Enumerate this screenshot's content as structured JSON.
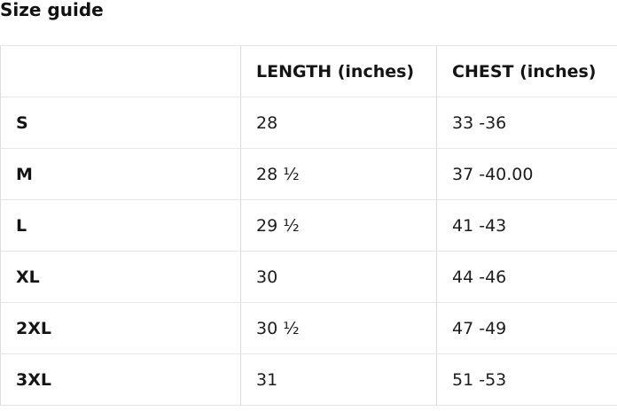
{
  "title": "Size guide",
  "table": {
    "columns": [
      "",
      "LENGTH (inches)",
      "CHEST (inches)"
    ],
    "rows": [
      {
        "size": "S",
        "length": "28",
        "chest": "33 -36"
      },
      {
        "size": "M",
        "length": "28 ½",
        "chest": "37 -40.00"
      },
      {
        "size": "L",
        "length": "29 ½",
        "chest": "41 -43"
      },
      {
        "size": "XL",
        "length": "30",
        "chest": "44 -46"
      },
      {
        "size": "2XL",
        "length": "30 ½",
        "chest": "47 -49"
      },
      {
        "size": "3XL",
        "length": "31",
        "chest": "51 -53"
      }
    ]
  },
  "colors": {
    "background": "#ffffff",
    "text": "#1a1a1a",
    "border_vertical": "#d9d9d9",
    "border_horizontal": "#e7e7e7"
  }
}
